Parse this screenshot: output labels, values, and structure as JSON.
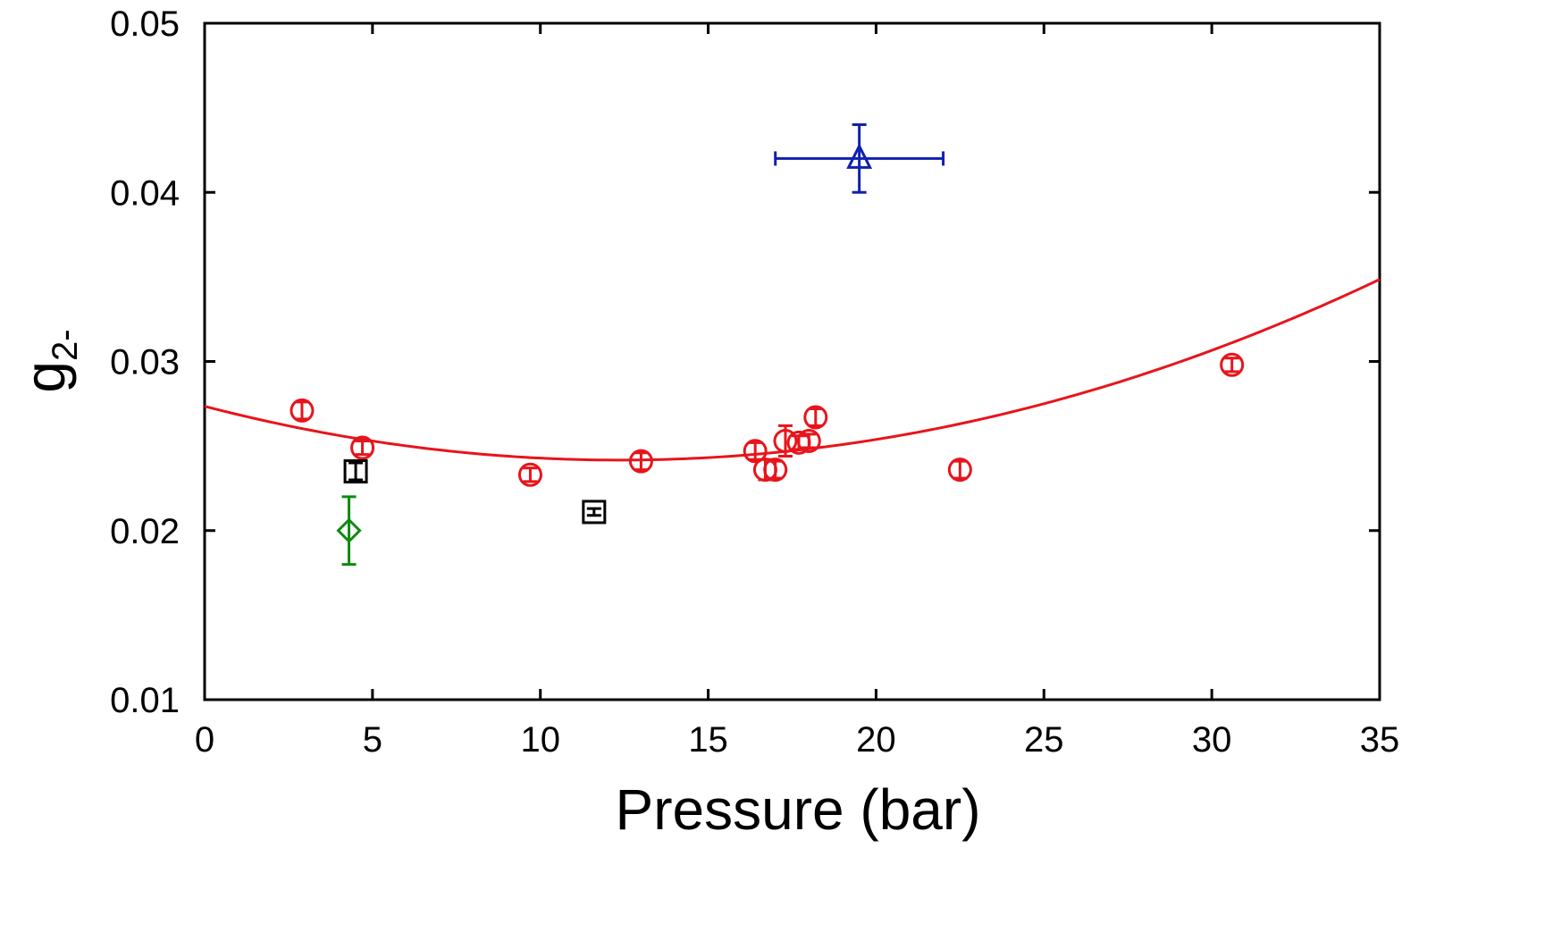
{
  "chart_data": {
    "type": "scatter",
    "title": "",
    "xlabel": "Pressure (bar)",
    "ylabel": {
      "base": "g",
      "subscript": "2-"
    },
    "xlim": [
      0,
      35
    ],
    "ylim": [
      0.01,
      0.05
    ],
    "xticks": [
      0,
      5,
      10,
      15,
      20,
      25,
      30,
      35
    ],
    "yticks": [
      0.01,
      0.02,
      0.03,
      0.04,
      0.05
    ],
    "xtick_labels": [
      "0",
      "5",
      "10",
      "15",
      "20",
      "25",
      "30",
      "35"
    ],
    "ytick_labels": [
      "0.01",
      "0.02",
      "0.03",
      "0.04",
      "0.05"
    ],
    "grid": false,
    "series": [
      {
        "name": "red-circles",
        "marker": "circle",
        "color": "#e8141b",
        "points": [
          {
            "x": 2.9,
            "y": 0.0271,
            "yerr": 0.0005
          },
          {
            "x": 4.7,
            "y": 0.0249,
            "yerr": 0.0004
          },
          {
            "x": 9.7,
            "y": 0.0233,
            "yerr": 0.0004
          },
          {
            "x": 13.0,
            "y": 0.0241,
            "yerr": 0.0005
          },
          {
            "x": 16.4,
            "y": 0.0247,
            "yerr": 0.0005
          },
          {
            "x": 16.7,
            "y": 0.0236,
            "yerr": 0.0006
          },
          {
            "x": 17.0,
            "y": 0.0236,
            "yerr": 0.0005
          },
          {
            "x": 17.3,
            "y": 0.0253,
            "yerr": 0.0009
          },
          {
            "x": 17.7,
            "y": 0.0252,
            "yerr": 0.0004
          },
          {
            "x": 18.0,
            "y": 0.0253,
            "yerr": 0.0004
          },
          {
            "x": 18.2,
            "y": 0.0267,
            "yerr": 0.0005
          },
          {
            "x": 22.5,
            "y": 0.0236,
            "yerr": 0.0005
          },
          {
            "x": 30.6,
            "y": 0.0298,
            "yerr": 0.0004
          }
        ]
      },
      {
        "name": "black-squares",
        "marker": "square",
        "color": "#000000",
        "points": [
          {
            "x": 4.5,
            "y": 0.0235,
            "yerr": 0.0005
          },
          {
            "x": 11.6,
            "y": 0.0211,
            "yerr": 0.0002
          }
        ]
      },
      {
        "name": "green-diamond",
        "marker": "diamond",
        "color": "#0f8a0f",
        "points": [
          {
            "x": 4.3,
            "y": 0.02,
            "yerr": 0.002
          }
        ]
      },
      {
        "name": "blue-triangle",
        "marker": "triangle",
        "color": "#1020b0",
        "points": [
          {
            "x": 19.5,
            "y": 0.042,
            "yerr": 0.002,
            "xerr": 2.5
          }
        ]
      }
    ],
    "fit_curve": {
      "name": "quadratic-fit",
      "color": "#e8141b",
      "x_range": [
        0,
        35
      ],
      "coefficients": {
        "a": 0.02735,
        "b": -0.000515,
        "c": 2.084e-05
      }
    }
  }
}
